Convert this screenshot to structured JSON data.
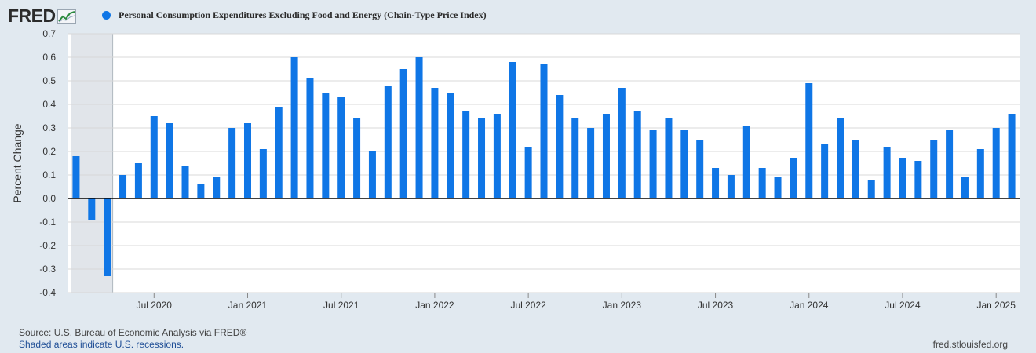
{
  "logo": {
    "text": "FRED"
  },
  "footer": {
    "source": "Source: U.S. Bureau of Economic Analysis via FRED®",
    "recession_note": "Shaded areas indicate U.S. recessions.",
    "url": "fred.stlouisfed.org"
  },
  "colors": {
    "bar": "#0f76e6",
    "recession": "#e1e5ea",
    "background": "#e1e9f0",
    "plot": "#ffffff"
  },
  "chart_data": {
    "type": "bar",
    "title": "Personal Consumption Expenditures Excluding Food and Energy (Chain-Type Price Index)",
    "ylabel": "Percent Change",
    "xlabel": "",
    "ylim": [
      -0.4,
      0.7
    ],
    "yticks": [
      "0.7",
      "0.6",
      "0.5",
      "0.4",
      "0.3",
      "0.2",
      "0.1",
      "0.0",
      "-0.1",
      "-0.2",
      "-0.3",
      "-0.4"
    ],
    "xtick_labels": [
      "Jul 2020",
      "Jan 2021",
      "Jul 2021",
      "Jan 2022",
      "Jul 2022",
      "Jan 2023",
      "Jul 2023",
      "Jan 2024",
      "Jul 2024",
      "Jan 2025"
    ],
    "grid": true,
    "recession": {
      "start": "2020-02",
      "end": "2020-04"
    },
    "series": [
      {
        "name": "Personal Consumption Expenditures Excluding Food and Energy (Chain-Type Price Index)",
        "x": [
          "2020-02",
          "2020-03",
          "2020-04",
          "2020-05",
          "2020-06",
          "2020-07",
          "2020-08",
          "2020-09",
          "2020-10",
          "2020-11",
          "2020-12",
          "2021-01",
          "2021-02",
          "2021-03",
          "2021-04",
          "2021-05",
          "2021-06",
          "2021-07",
          "2021-08",
          "2021-09",
          "2021-10",
          "2021-11",
          "2021-12",
          "2022-01",
          "2022-02",
          "2022-03",
          "2022-04",
          "2022-05",
          "2022-06",
          "2022-07",
          "2022-08",
          "2022-09",
          "2022-10",
          "2022-11",
          "2022-12",
          "2023-01",
          "2023-02",
          "2023-03",
          "2023-04",
          "2023-05",
          "2023-06",
          "2023-07",
          "2023-08",
          "2023-09",
          "2023-10",
          "2023-11",
          "2023-12",
          "2024-01",
          "2024-02",
          "2024-03",
          "2024-04",
          "2024-05",
          "2024-06",
          "2024-07",
          "2024-08",
          "2024-09",
          "2024-10",
          "2024-11",
          "2024-12",
          "2025-01",
          "2025-02"
        ],
        "values": [
          0.18,
          -0.09,
          -0.33,
          0.1,
          0.15,
          0.35,
          0.32,
          0.14,
          0.06,
          0.09,
          0.3,
          0.32,
          0.21,
          0.39,
          0.6,
          0.51,
          0.45,
          0.43,
          0.34,
          0.2,
          0.48,
          0.55,
          0.6,
          0.47,
          0.45,
          0.37,
          0.34,
          0.36,
          0.58,
          0.22,
          0.57,
          0.44,
          0.34,
          0.3,
          0.36,
          0.47,
          0.37,
          0.29,
          0.34,
          0.29,
          0.25,
          0.13,
          0.1,
          0.31,
          0.13,
          0.09,
          0.17,
          0.49,
          0.23,
          0.34,
          0.25,
          0.08,
          0.22,
          0.17,
          0.16,
          0.25,
          0.29,
          0.09,
          0.21,
          0.3,
          0.36
        ]
      }
    ]
  }
}
